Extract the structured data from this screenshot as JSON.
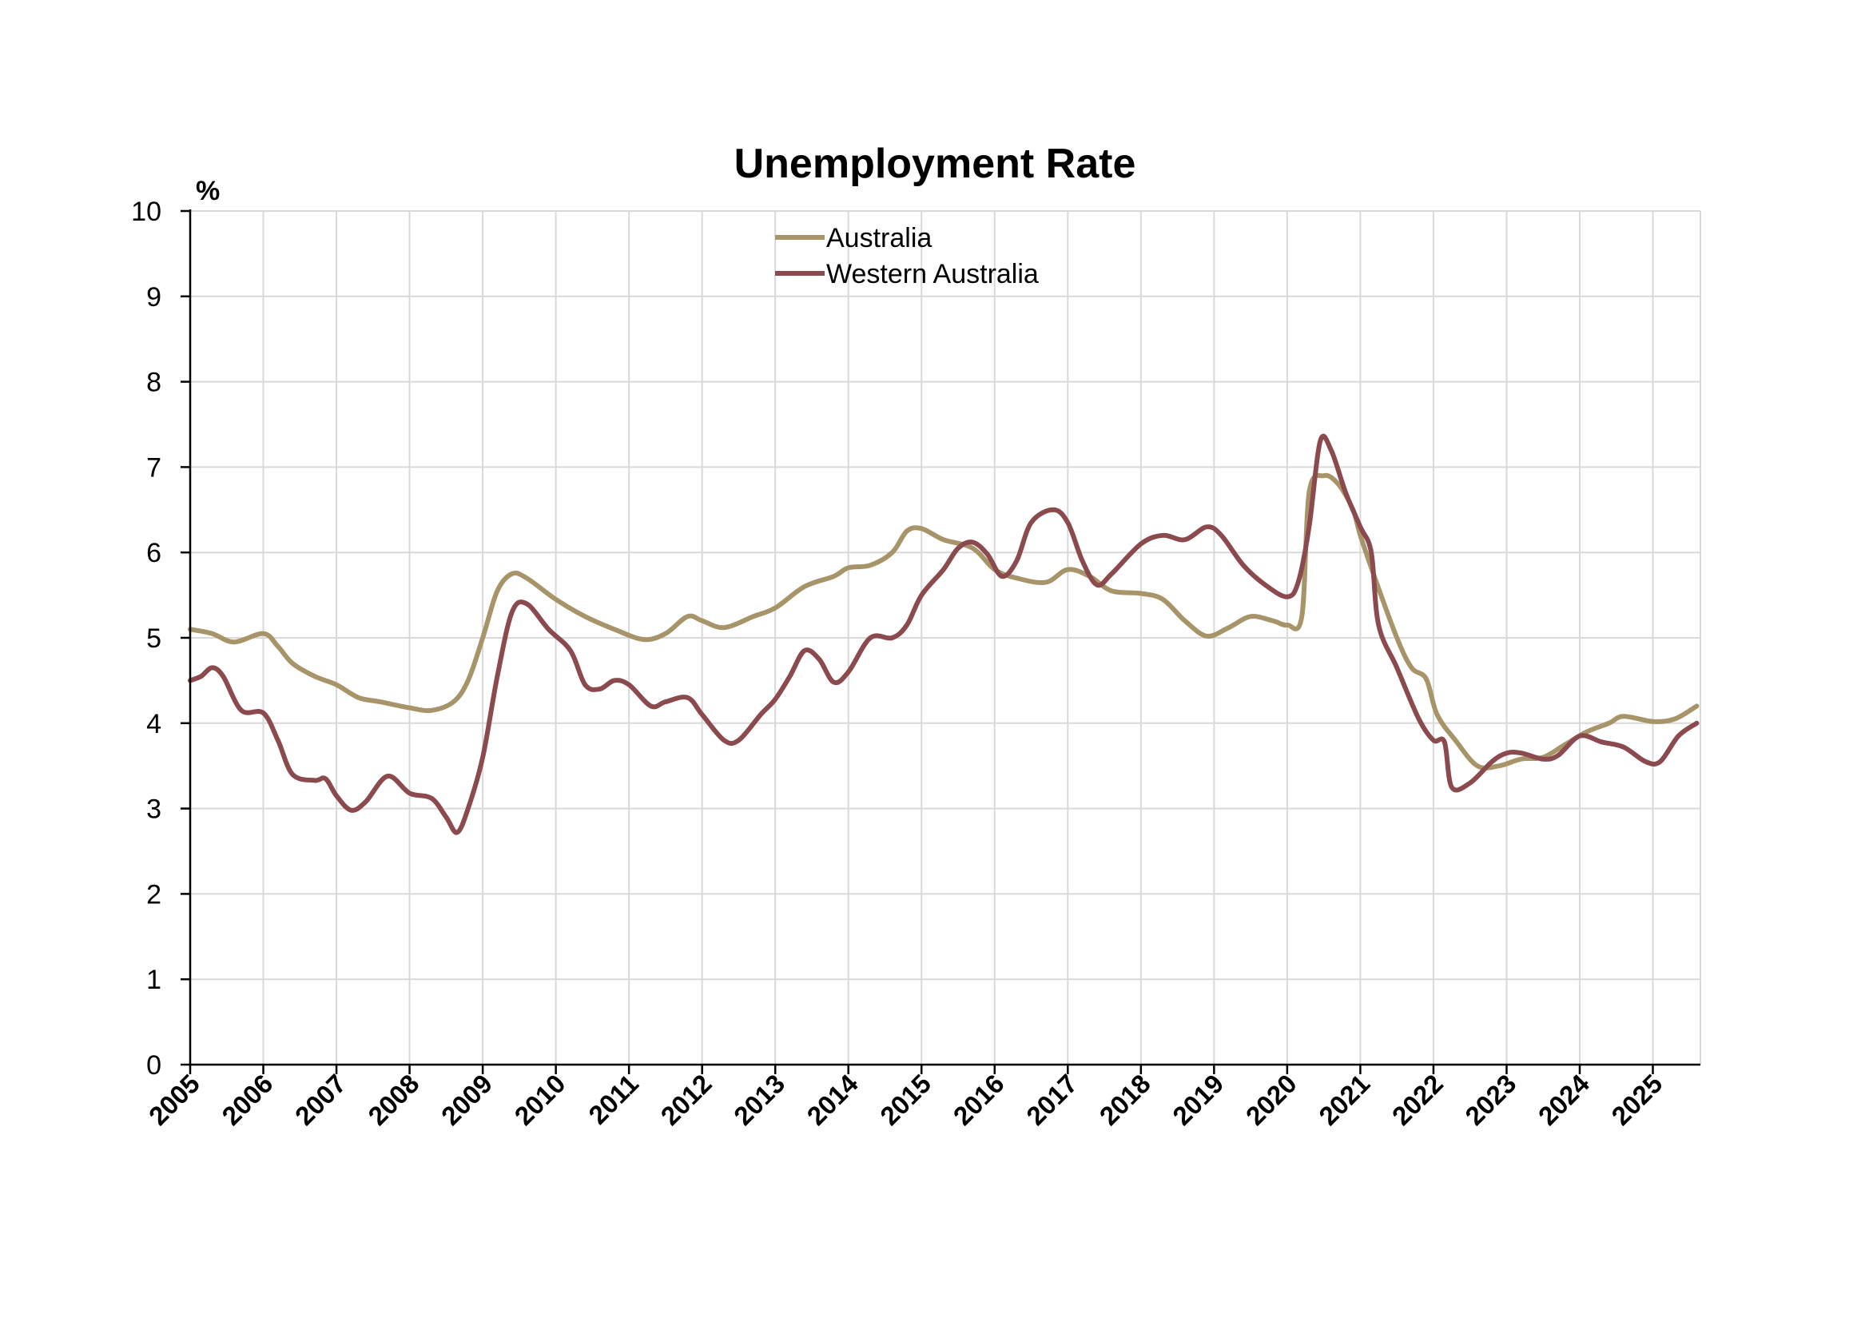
{
  "chart_data": {
    "type": "line",
    "title": "Unemployment Rate",
    "unit": "%",
    "xlabel": "",
    "ylabel": "",
    "xlim": [
      2005,
      2025.65
    ],
    "ylim": [
      0,
      10
    ],
    "y_ticks": [
      "0",
      "1",
      "2",
      "3",
      "4",
      "5",
      "6",
      "7",
      "8",
      "9",
      "10"
    ],
    "x_ticks": [
      "2005",
      "2006",
      "2007",
      "2008",
      "2009",
      "2010",
      "2011",
      "2012",
      "2013",
      "2014",
      "2015",
      "2016",
      "2017",
      "2018",
      "2019",
      "2020",
      "2021",
      "2022",
      "2023",
      "2024",
      "2025"
    ],
    "grid": true,
    "legend_position": "top-center",
    "series": [
      {
        "name": "Australia",
        "color": "#a89469",
        "points": [
          [
            2005.0,
            5.1
          ],
          [
            2005.3,
            5.05
          ],
          [
            2005.6,
            4.95
          ],
          [
            2006.0,
            5.05
          ],
          [
            2006.2,
            4.9
          ],
          [
            2006.4,
            4.7
          ],
          [
            2006.7,
            4.55
          ],
          [
            2007.0,
            4.45
          ],
          [
            2007.3,
            4.3
          ],
          [
            2007.6,
            4.25
          ],
          [
            2008.0,
            4.18
          ],
          [
            2008.3,
            4.15
          ],
          [
            2008.6,
            4.25
          ],
          [
            2008.8,
            4.5
          ],
          [
            2009.0,
            5.0
          ],
          [
            2009.2,
            5.55
          ],
          [
            2009.4,
            5.75
          ],
          [
            2009.6,
            5.7
          ],
          [
            2010.0,
            5.45
          ],
          [
            2010.4,
            5.25
          ],
          [
            2010.8,
            5.1
          ],
          [
            2011.2,
            4.98
          ],
          [
            2011.5,
            5.05
          ],
          [
            2011.8,
            5.25
          ],
          [
            2012.0,
            5.2
          ],
          [
            2012.3,
            5.12
          ],
          [
            2012.7,
            5.25
          ],
          [
            2013.0,
            5.35
          ],
          [
            2013.4,
            5.6
          ],
          [
            2013.8,
            5.72
          ],
          [
            2014.0,
            5.82
          ],
          [
            2014.3,
            5.85
          ],
          [
            2014.6,
            6.0
          ],
          [
            2014.8,
            6.25
          ],
          [
            2015.0,
            6.28
          ],
          [
            2015.3,
            6.15
          ],
          [
            2015.7,
            6.05
          ],
          [
            2016.0,
            5.8
          ],
          [
            2016.3,
            5.7
          ],
          [
            2016.7,
            5.65
          ],
          [
            2017.0,
            5.8
          ],
          [
            2017.3,
            5.72
          ],
          [
            2017.6,
            5.55
          ],
          [
            2018.0,
            5.52
          ],
          [
            2018.3,
            5.45
          ],
          [
            2018.6,
            5.2
          ],
          [
            2018.9,
            5.02
          ],
          [
            2019.2,
            5.12
          ],
          [
            2019.5,
            5.25
          ],
          [
            2019.8,
            5.2
          ],
          [
            2020.0,
            5.15
          ],
          [
            2020.2,
            5.25
          ],
          [
            2020.3,
            6.7
          ],
          [
            2020.5,
            6.9
          ],
          [
            2020.7,
            6.8
          ],
          [
            2020.9,
            6.5
          ],
          [
            2021.0,
            6.2
          ],
          [
            2021.2,
            5.7
          ],
          [
            2021.5,
            5.0
          ],
          [
            2021.7,
            4.65
          ],
          [
            2021.9,
            4.52
          ],
          [
            2022.05,
            4.1
          ],
          [
            2022.3,
            3.8
          ],
          [
            2022.6,
            3.5
          ],
          [
            2022.9,
            3.5
          ],
          [
            2023.2,
            3.58
          ],
          [
            2023.5,
            3.6
          ],
          [
            2023.8,
            3.75
          ],
          [
            2024.1,
            3.9
          ],
          [
            2024.4,
            4.0
          ],
          [
            2024.6,
            4.08
          ],
          [
            2025.0,
            4.02
          ],
          [
            2025.3,
            4.05
          ],
          [
            2025.6,
            4.2
          ]
        ]
      },
      {
        "name": "Western Australia",
        "color": "#8b4a4d",
        "points": [
          [
            2005.0,
            4.5
          ],
          [
            2005.15,
            4.55
          ],
          [
            2005.3,
            4.65
          ],
          [
            2005.45,
            4.55
          ],
          [
            2005.7,
            4.15
          ],
          [
            2006.0,
            4.12
          ],
          [
            2006.2,
            3.8
          ],
          [
            2006.4,
            3.4
          ],
          [
            2006.7,
            3.33
          ],
          [
            2006.85,
            3.35
          ],
          [
            2007.0,
            3.15
          ],
          [
            2007.2,
            2.98
          ],
          [
            2007.4,
            3.08
          ],
          [
            2007.7,
            3.38
          ],
          [
            2008.0,
            3.18
          ],
          [
            2008.3,
            3.12
          ],
          [
            2008.5,
            2.9
          ],
          [
            2008.65,
            2.72
          ],
          [
            2008.8,
            3.0
          ],
          [
            2009.0,
            3.6
          ],
          [
            2009.2,
            4.55
          ],
          [
            2009.4,
            5.3
          ],
          [
            2009.6,
            5.4
          ],
          [
            2009.9,
            5.1
          ],
          [
            2010.2,
            4.85
          ],
          [
            2010.4,
            4.45
          ],
          [
            2010.6,
            4.4
          ],
          [
            2010.8,
            4.5
          ],
          [
            2011.0,
            4.45
          ],
          [
            2011.3,
            4.2
          ],
          [
            2011.5,
            4.25
          ],
          [
            2011.8,
            4.3
          ],
          [
            2012.0,
            4.1
          ],
          [
            2012.3,
            3.8
          ],
          [
            2012.5,
            3.8
          ],
          [
            2012.8,
            4.1
          ],
          [
            2013.0,
            4.28
          ],
          [
            2013.2,
            4.55
          ],
          [
            2013.4,
            4.85
          ],
          [
            2013.6,
            4.75
          ],
          [
            2013.8,
            4.48
          ],
          [
            2014.0,
            4.6
          ],
          [
            2014.3,
            5.0
          ],
          [
            2014.6,
            5.0
          ],
          [
            2014.8,
            5.15
          ],
          [
            2015.0,
            5.5
          ],
          [
            2015.3,
            5.8
          ],
          [
            2015.5,
            6.05
          ],
          [
            2015.7,
            6.12
          ],
          [
            2015.9,
            5.98
          ],
          [
            2016.1,
            5.72
          ],
          [
            2016.3,
            5.9
          ],
          [
            2016.5,
            6.35
          ],
          [
            2016.8,
            6.5
          ],
          [
            2017.0,
            6.35
          ],
          [
            2017.2,
            5.9
          ],
          [
            2017.4,
            5.62
          ],
          [
            2017.6,
            5.75
          ],
          [
            2018.0,
            6.1
          ],
          [
            2018.3,
            6.2
          ],
          [
            2018.6,
            6.15
          ],
          [
            2018.9,
            6.3
          ],
          [
            2019.1,
            6.2
          ],
          [
            2019.4,
            5.85
          ],
          [
            2019.7,
            5.62
          ],
          [
            2020.0,
            5.48
          ],
          [
            2020.15,
            5.65
          ],
          [
            2020.3,
            6.3
          ],
          [
            2020.45,
            7.3
          ],
          [
            2020.6,
            7.2
          ],
          [
            2020.8,
            6.7
          ],
          [
            2021.0,
            6.3
          ],
          [
            2021.15,
            6.0
          ],
          [
            2021.25,
            5.15
          ],
          [
            2021.5,
            4.65
          ],
          [
            2021.8,
            4.05
          ],
          [
            2022.0,
            3.8
          ],
          [
            2022.15,
            3.78
          ],
          [
            2022.25,
            3.25
          ],
          [
            2022.5,
            3.3
          ],
          [
            2022.8,
            3.55
          ],
          [
            2023.0,
            3.65
          ],
          [
            2023.2,
            3.65
          ],
          [
            2023.5,
            3.58
          ],
          [
            2023.7,
            3.62
          ],
          [
            2024.0,
            3.85
          ],
          [
            2024.3,
            3.78
          ],
          [
            2024.6,
            3.72
          ],
          [
            2024.9,
            3.55
          ],
          [
            2025.1,
            3.55
          ],
          [
            2025.35,
            3.85
          ],
          [
            2025.6,
            4.0
          ]
        ]
      }
    ]
  }
}
